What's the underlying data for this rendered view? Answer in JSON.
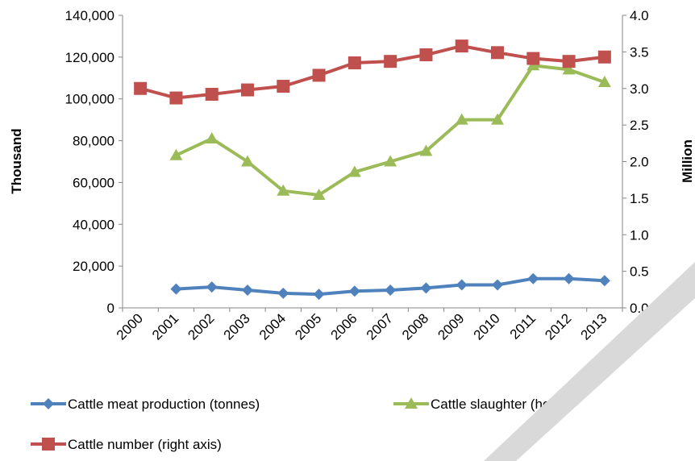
{
  "chart_data": {
    "type": "line",
    "categories": [
      "2000",
      "2001",
      "2002",
      "2003",
      "2004",
      "2005",
      "2006",
      "2007",
      "2008",
      "2009",
      "2010",
      "2011",
      "2012",
      "2013"
    ],
    "y_left": {
      "label": "Thousand",
      "range": [
        0,
        140000
      ],
      "ticks": [
        "0",
        "20,000",
        "40,000",
        "60,000",
        "80,000",
        "100,000",
        "120,000",
        "140,000"
      ]
    },
    "y_right": {
      "label": "Million",
      "range": [
        0,
        4.0
      ],
      "ticks": [
        "0.0",
        "0.5",
        "1.0",
        "1.5",
        "2.0",
        "2.5",
        "3.0",
        "3.5",
        "4.0"
      ]
    },
    "series": [
      {
        "name": "Cattle meat production (tonnes)",
        "axis": "left",
        "color": "#4f81bd",
        "marker": "diamond",
        "values": [
          null,
          9000,
          10000,
          8500,
          7000,
          6500,
          8000,
          8500,
          9500,
          11000,
          11000,
          14000,
          14000,
          13000
        ]
      },
      {
        "name": "Cattle slaughter (head)",
        "axis": "left",
        "color": "#9bbb59",
        "marker": "triangle",
        "values": [
          null,
          73000,
          81000,
          70000,
          56000,
          54000,
          65000,
          70000,
          75000,
          90000,
          90000,
          116000,
          114000,
          108000
        ]
      },
      {
        "name": "Cattle number (right axis)",
        "axis": "right",
        "color": "#c0504d",
        "marker": "square",
        "values": [
          3.0,
          2.87,
          2.92,
          2.98,
          3.03,
          3.18,
          3.35,
          3.37,
          3.46,
          3.58,
          3.49,
          3.41,
          3.37,
          3.43
        ]
      }
    ],
    "grid": false,
    "legend_position": "bottom"
  }
}
